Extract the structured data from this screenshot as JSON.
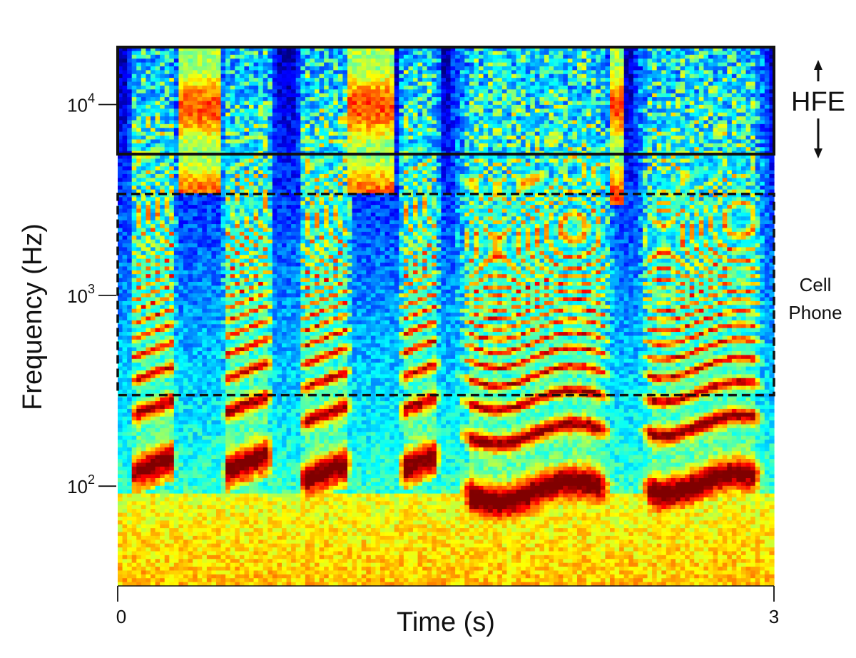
{
  "chart_data": {
    "type": "heatmap",
    "title": "",
    "xlabel": "Time (s)",
    "ylabel": "Frequency (Hz)",
    "x_scale": "linear",
    "y_scale": "log",
    "xlim": [
      0,
      3
    ],
    "ylim": [
      30,
      20000
    ],
    "x_ticks": [
      {
        "value": 0,
        "label": "0"
      },
      {
        "value": 3,
        "label": "3"
      }
    ],
    "y_ticks": [
      {
        "value": 100,
        "base": "10",
        "exp": "2"
      },
      {
        "value": 1000,
        "base": "10",
        "exp": "3"
      },
      {
        "value": 10000,
        "base": "10",
        "exp": "4"
      }
    ],
    "colormap": "jet",
    "grid": false,
    "regions": [
      {
        "name": "HFE",
        "label": "HFE",
        "style": "solid-box",
        "freq_range_hz": [
          5500,
          20000
        ],
        "time_range_s": [
          0,
          3
        ]
      },
      {
        "name": "cell-phone",
        "label_lines": [
          "Cell",
          "Phone"
        ],
        "style": "dashed-box",
        "freq_range_hz": [
          300,
          3400
        ],
        "time_range_s": [
          0,
          3
        ]
      }
    ],
    "voiced_segments": [
      {
        "start": 0.05,
        "end": 0.28,
        "f0": 130
      },
      {
        "start": 0.47,
        "end": 0.72,
        "f0": 135
      },
      {
        "start": 0.82,
        "end": 1.08,
        "f0": 120
      },
      {
        "start": 1.28,
        "end": 1.48,
        "f0": 135
      },
      {
        "start": 1.52,
        "end": 2.3,
        "f0": 95
      },
      {
        "start": 2.36,
        "end": 2.98,
        "f0": 105
      }
    ],
    "fricative_segments": [
      {
        "start": 0.27,
        "end": 0.47,
        "f_low": 3500,
        "f_high": 20000
      },
      {
        "start": 1.06,
        "end": 1.26,
        "f_low": 3500,
        "f_high": 20000
      },
      {
        "start": 2.24,
        "end": 2.32,
        "f_low": 3000,
        "f_high": 20000
      }
    ]
  }
}
